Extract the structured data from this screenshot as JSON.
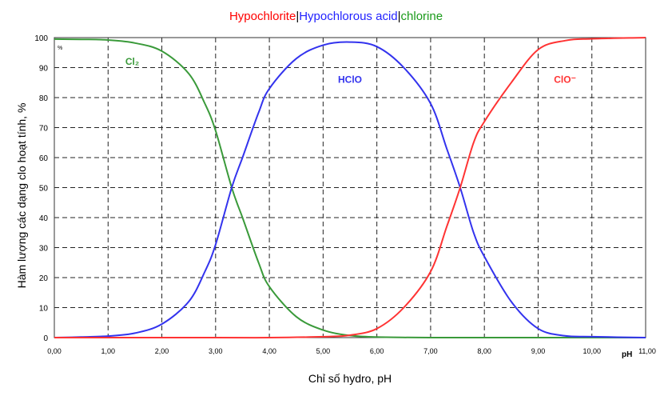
{
  "chart_data": {
    "type": "line",
    "title_parts": [
      {
        "text": "Hypochlorite",
        "color": "#ff0000"
      },
      {
        "text": "|",
        "color": "#000000"
      },
      {
        "text": "Hypochlorous acid",
        "color": "#2222ff"
      },
      {
        "text": "|",
        "color": "#000000"
      },
      {
        "text": "chlorine",
        "color": "#1a9a1a"
      }
    ],
    "xlabel": "Chỉ số hydro, pH",
    "ylabel": "Hàm lượng các dạng clo hoạt tính, %",
    "x_unit_label": "pH",
    "y_unit_label": "%",
    "xlim": [
      0,
      11
    ],
    "ylim": [
      0,
      100
    ],
    "x_ticks": [
      0,
      1,
      2,
      3,
      4,
      5,
      6,
      7,
      8,
      9,
      10,
      11
    ],
    "x_tick_labels": [
      "0,00",
      "1,00",
      "2,00",
      "3,00",
      "4,00",
      "5,00",
      "6,00",
      "7,00",
      "8,00",
      "9,00",
      "10,00",
      "11,00"
    ],
    "y_ticks": [
      0,
      10,
      20,
      30,
      40,
      50,
      60,
      70,
      80,
      90,
      100
    ],
    "y_tick_labels": [
      "0",
      "10",
      "20",
      "30",
      "40",
      "50",
      "60",
      "70",
      "80",
      "90",
      "100"
    ],
    "grid": true,
    "series": [
      {
        "name": "Cl2",
        "label": "Cl₂",
        "color": "#3a9a3a",
        "label_at": [
          1.45,
          91
        ],
        "points": [
          [
            0,
            99.5
          ],
          [
            0.5,
            99.4
          ],
          [
            1,
            99.2
          ],
          [
            1.5,
            98.2
          ],
          [
            2,
            95.5
          ],
          [
            2.5,
            88
          ],
          [
            2.8,
            78
          ],
          [
            3,
            69
          ],
          [
            3.3,
            50
          ],
          [
            3.5,
            40
          ],
          [
            3.8,
            25
          ],
          [
            4,
            17
          ],
          [
            4.5,
            7
          ],
          [
            5,
            2.5
          ],
          [
            5.5,
            0.7
          ],
          [
            6,
            0.2
          ],
          [
            7,
            0
          ],
          [
            8,
            0
          ],
          [
            9,
            0
          ],
          [
            10,
            0
          ],
          [
            11,
            0
          ]
        ]
      },
      {
        "name": "HClO",
        "label": "HClO",
        "color": "#3333ee",
        "label_at": [
          5.5,
          85
        ],
        "points": [
          [
            0,
            0
          ],
          [
            0.5,
            0.2
          ],
          [
            1,
            0.5
          ],
          [
            1.5,
            1.5
          ],
          [
            2,
            4.5
          ],
          [
            2.5,
            12
          ],
          [
            2.8,
            22
          ],
          [
            3,
            31
          ],
          [
            3.3,
            50
          ],
          [
            3.5,
            60
          ],
          [
            3.8,
            75
          ],
          [
            4,
            83
          ],
          [
            4.5,
            93
          ],
          [
            5,
            97.5
          ],
          [
            5.5,
            98.5
          ],
          [
            6,
            97
          ],
          [
            6.5,
            90
          ],
          [
            7,
            78
          ],
          [
            7.3,
            63
          ],
          [
            7.55,
            50
          ],
          [
            7.8,
            35
          ],
          [
            8,
            27
          ],
          [
            8.5,
            12
          ],
          [
            9,
            3
          ],
          [
            9.5,
            0.6
          ],
          [
            10,
            0.3
          ],
          [
            11,
            0
          ]
        ]
      },
      {
        "name": "ClO-",
        "label": "ClO⁻",
        "color": "#ff3333",
        "label_at": [
          9.5,
          85
        ],
        "points": [
          [
            0,
            0
          ],
          [
            3,
            0
          ],
          [
            4,
            0
          ],
          [
            5,
            0.3
          ],
          [
            5.5,
            0.8
          ],
          [
            6,
            3
          ],
          [
            6.5,
            10
          ],
          [
            7,
            22
          ],
          [
            7.3,
            37
          ],
          [
            7.55,
            50
          ],
          [
            7.8,
            65
          ],
          [
            8,
            72
          ],
          [
            8.5,
            85
          ],
          [
            9,
            96
          ],
          [
            9.5,
            99
          ],
          [
            10,
            99.6
          ],
          [
            11,
            100
          ]
        ]
      }
    ]
  }
}
